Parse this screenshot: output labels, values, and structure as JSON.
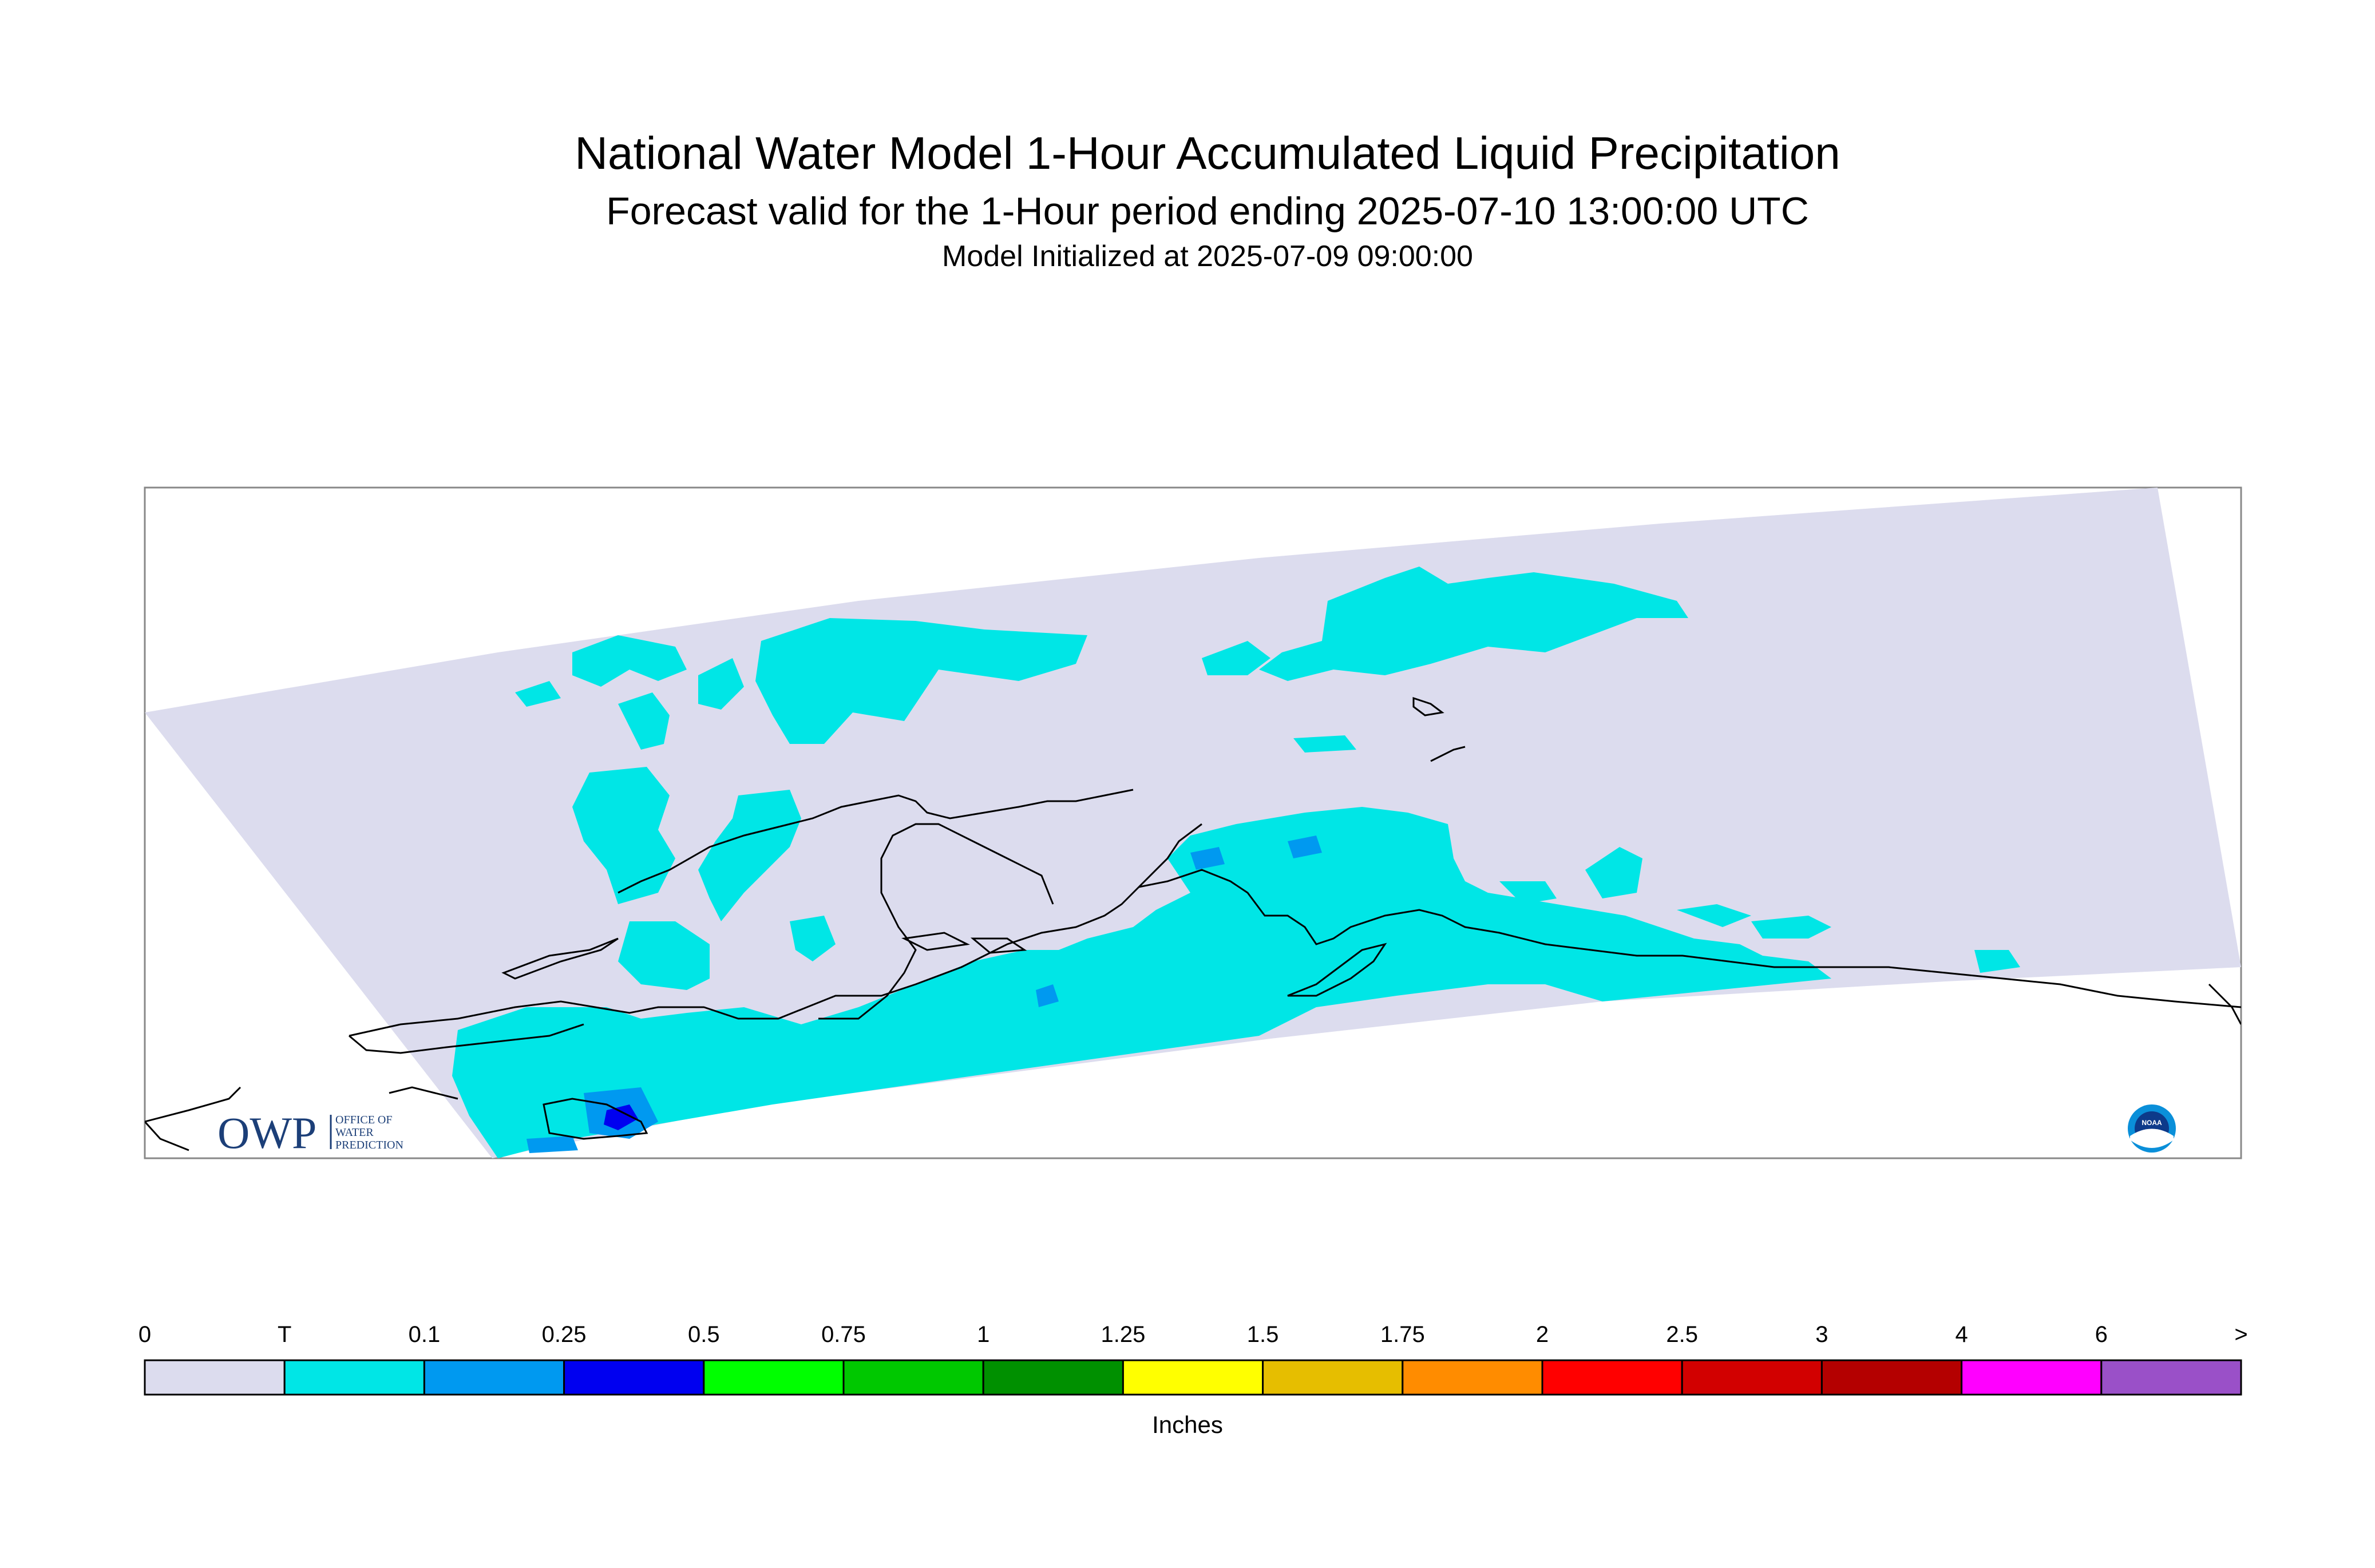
{
  "title": "National Water Model 1-Hour Accumulated Liquid Precipitation",
  "subtitle": "Forecast valid for the 1-Hour period ending 2025-07-10 13:00:00 UTC",
  "init_line": "Model Initialized at 2025-07-09 09:00:00",
  "logo": {
    "owp_text": "OWP",
    "owp_line1": "OFFICE OF",
    "owp_line2": "WATER",
    "owp_line3": "PREDICTION",
    "noaa_text": "NOAA",
    "noaa_icon": "noaa-logo-icon"
  },
  "legend": {
    "units": "Inches",
    "tick_labels": [
      "0",
      "T",
      "0.1",
      "0.25",
      "0.5",
      "0.75",
      "1",
      "1.25",
      "1.5",
      "1.75",
      "2",
      "2.5",
      "3",
      "4",
      "6",
      ">"
    ],
    "colors": [
      "#dcdcee",
      "#00e6e6",
      "#0099f0",
      "#0000f0",
      "#00ff00",
      "#00c800",
      "#009000",
      "#ffff00",
      "#e6be00",
      "#ff8c00",
      "#ff0000",
      "#d20000",
      "#b40000",
      "#ff00ff",
      "#9a50c8"
    ]
  },
  "map_colors": {
    "domain_fill": "#dcdcee",
    "trace": "#00e6e6",
    "light": "#0099f0",
    "heavy": "#0000f0",
    "coastline": "#000000"
  }
}
